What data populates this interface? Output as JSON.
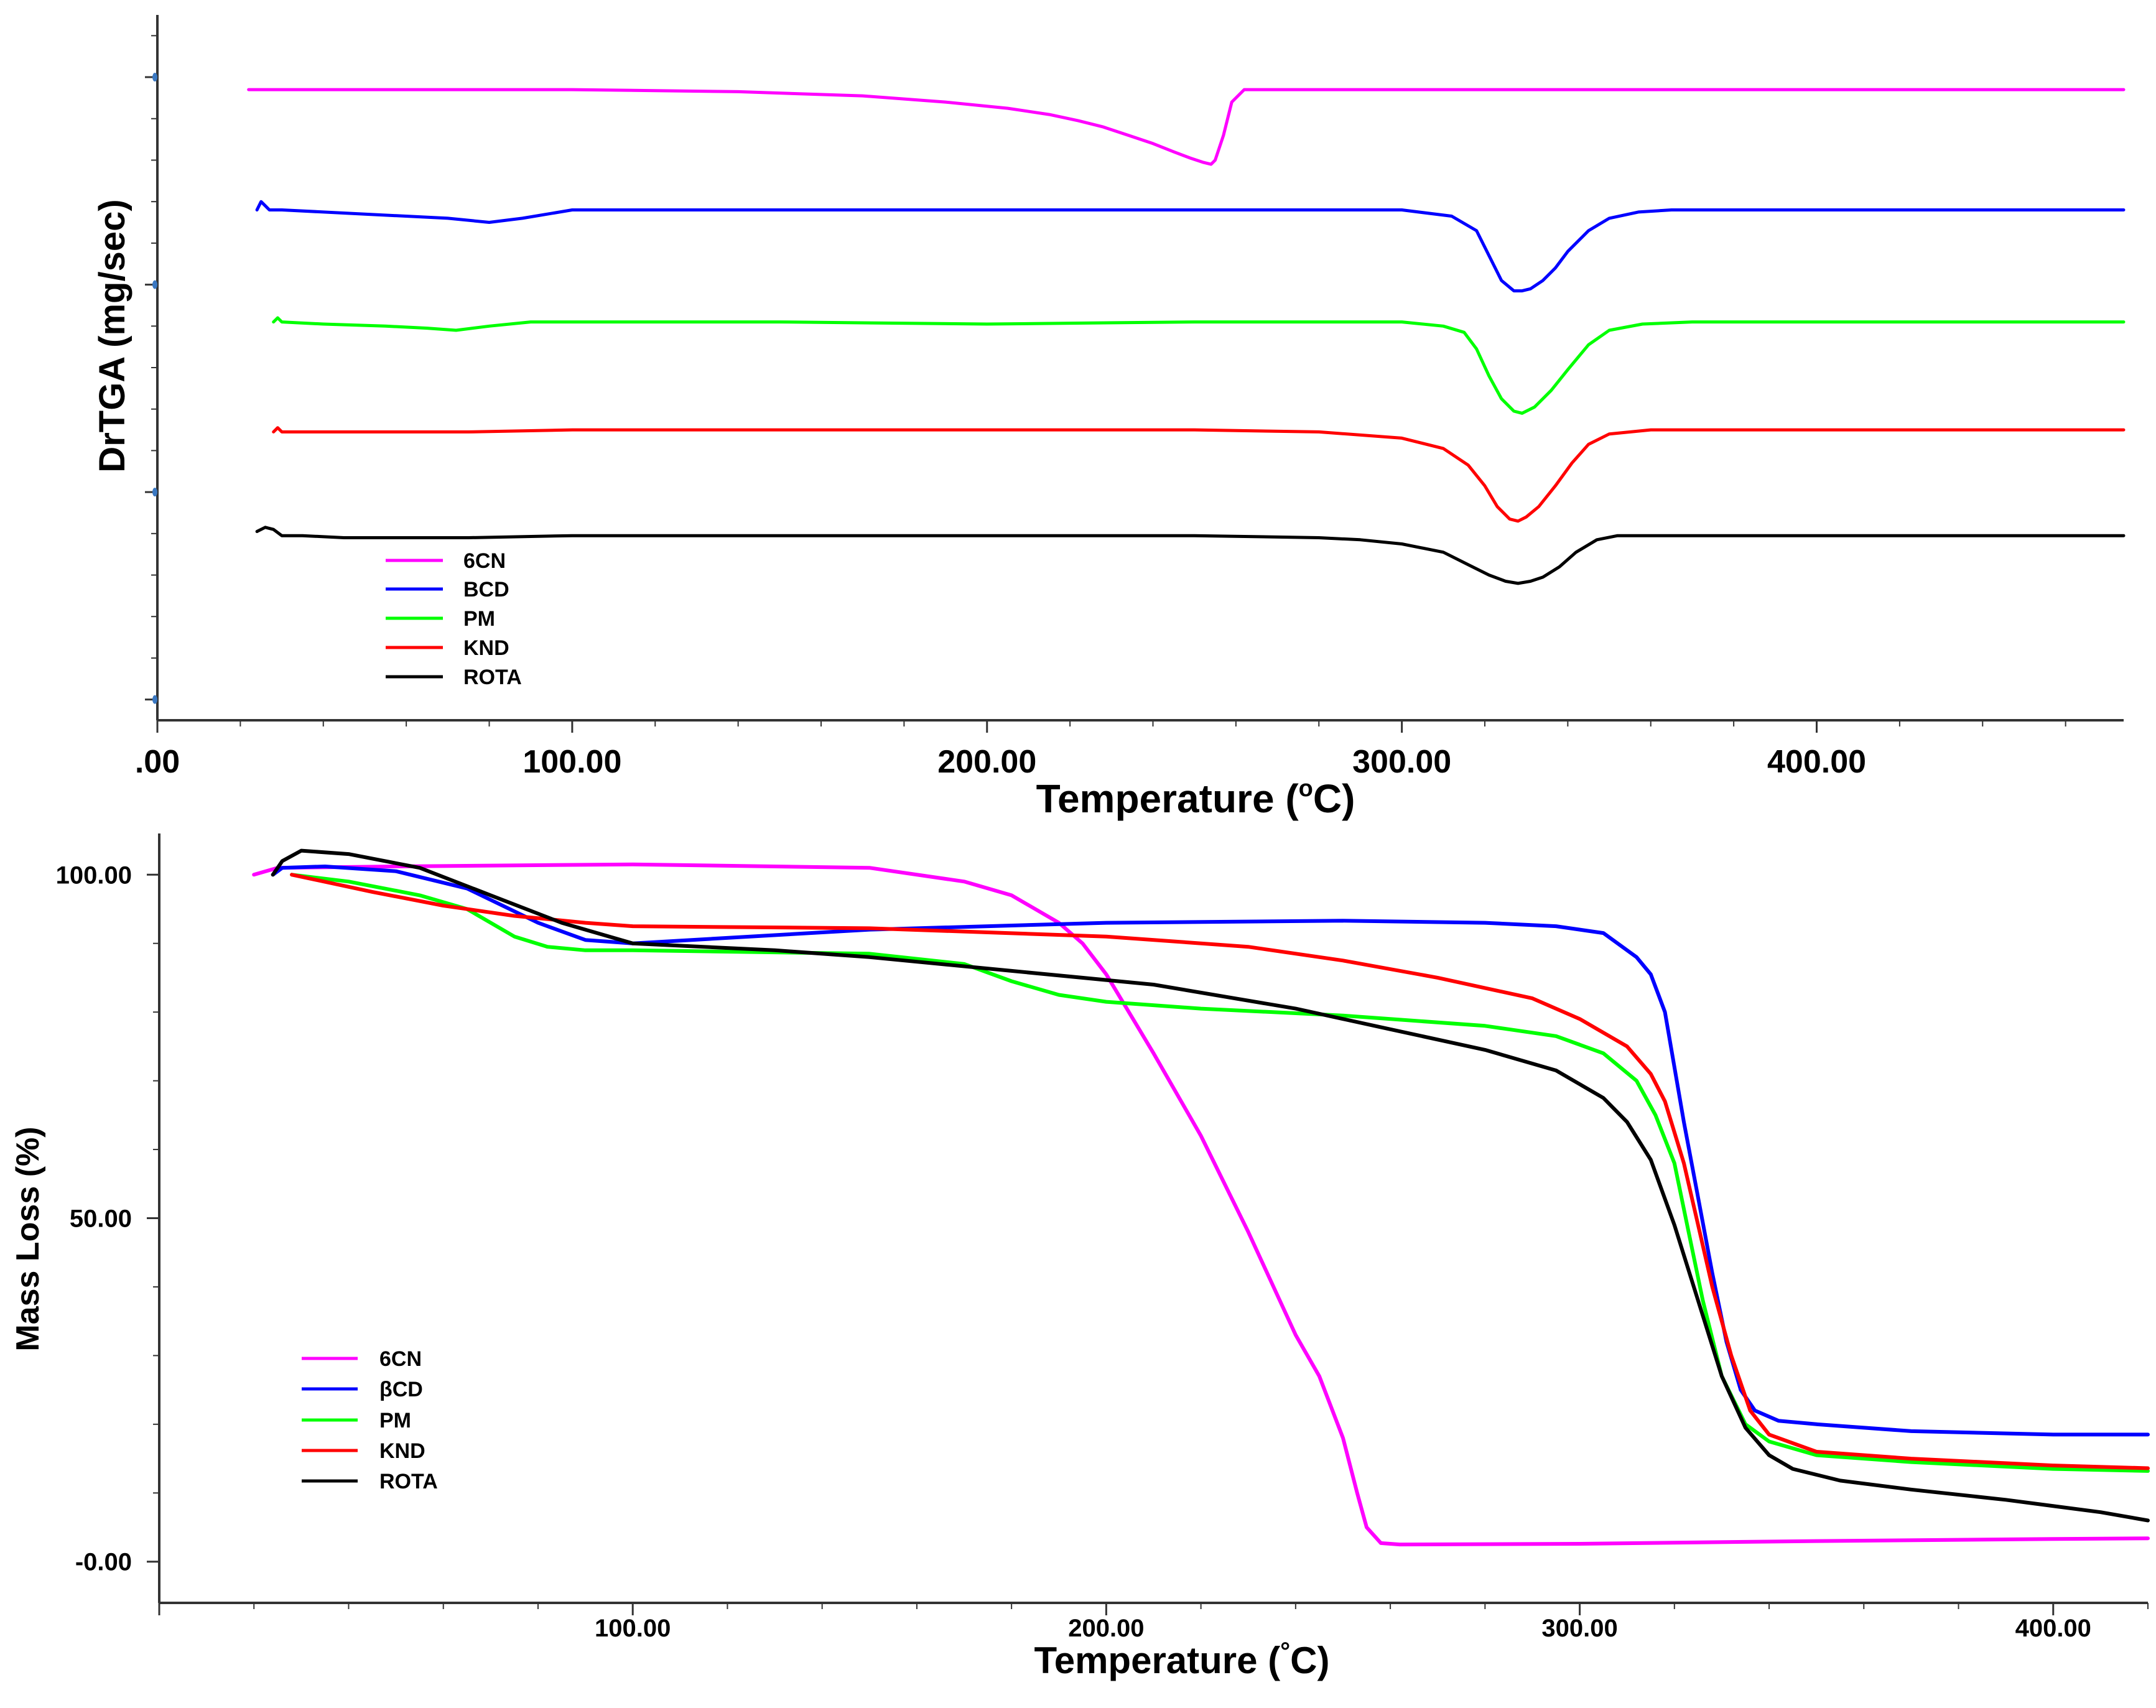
{
  "chart_data": [
    {
      "type": "line",
      "title": "",
      "xlabel": "Temperature (",
      "xlabel_sup": "o",
      "xlabel_tail": "C)",
      "ylabel": "DrTGA (mg/sec)",
      "xlim": [
        0,
        474
      ],
      "ylim": [
        -0.155,
        0.015
      ],
      "xticks": [
        0,
        100,
        200,
        300,
        400
      ],
      "xtick_labels": [
        ".00",
        "100.00",
        "200.00",
        "300.00",
        "400.00"
      ],
      "yticks": [
        0,
        -0.05,
        -0.1,
        -0.15
      ],
      "ytick_labels": [
        "",
        "",
        "",
        ""
      ],
      "legend_position": "lower-left",
      "series": [
        {
          "name": "6CN",
          "color": "#ff00ff",
          "x": [
            22,
            60,
            100,
            140,
            170,
            190,
            205,
            215,
            222,
            228,
            234,
            240,
            245,
            249,
            252,
            254,
            255,
            257,
            259,
            262,
            270,
            300,
            350,
            400,
            474
          ],
          "y": [
            -0.003,
            -0.003,
            -0.003,
            -0.0035,
            -0.0045,
            -0.006,
            -0.0075,
            -0.009,
            -0.0105,
            -0.012,
            -0.014,
            -0.016,
            -0.018,
            -0.0195,
            -0.0205,
            -0.021,
            -0.02,
            -0.014,
            -0.006,
            -0.003,
            -0.003,
            -0.003,
            -0.003,
            -0.003,
            -0.003
          ]
        },
        {
          "name": "BCD",
          "color": "#0000ff",
          "x": [
            24,
            25,
            26,
            27,
            30,
            50,
            70,
            80,
            88,
            100,
            150,
            200,
            250,
            300,
            312,
            318,
            321,
            324,
            327,
            329,
            331,
            334,
            337,
            340,
            345,
            350,
            357,
            365,
            400,
            474
          ],
          "y": [
            -0.032,
            -0.03,
            -0.031,
            -0.032,
            -0.032,
            -0.033,
            -0.034,
            -0.035,
            -0.034,
            -0.032,
            -0.032,
            -0.032,
            -0.032,
            -0.032,
            -0.0335,
            -0.037,
            -0.043,
            -0.049,
            -0.0515,
            -0.0515,
            -0.051,
            -0.049,
            -0.046,
            -0.042,
            -0.037,
            -0.034,
            -0.0325,
            -0.032,
            -0.032,
            -0.032
          ]
        },
        {
          "name": "PM",
          "color": "#00ff00",
          "x": [
            28,
            29,
            30,
            40,
            55,
            65,
            72,
            80,
            90,
            100,
            150,
            200,
            250,
            300,
            310,
            315,
            318,
            321,
            324,
            327,
            329,
            332,
            336,
            340,
            345,
            350,
            358,
            370,
            400,
            474
          ],
          "y": [
            -0.059,
            -0.058,
            -0.059,
            -0.0595,
            -0.06,
            -0.0605,
            -0.061,
            -0.06,
            -0.059,
            -0.059,
            -0.059,
            -0.0595,
            -0.059,
            -0.059,
            -0.06,
            -0.0615,
            -0.0655,
            -0.072,
            -0.0775,
            -0.0805,
            -0.081,
            -0.0795,
            -0.0755,
            -0.0705,
            -0.0645,
            -0.061,
            -0.0595,
            -0.059,
            -0.059,
            -0.059
          ]
        },
        {
          "name": "KND",
          "color": "#ff0000",
          "x": [
            28,
            29,
            30,
            50,
            75,
            100,
            150,
            200,
            250,
            280,
            300,
            310,
            316,
            320,
            323,
            326,
            328,
            330,
            333,
            337,
            341,
            345,
            350,
            360,
            400,
            474
          ],
          "y": [
            -0.0855,
            -0.0845,
            -0.0855,
            -0.0855,
            -0.0855,
            -0.085,
            -0.085,
            -0.085,
            -0.085,
            -0.0855,
            -0.087,
            -0.0895,
            -0.0935,
            -0.0985,
            -0.1035,
            -0.1065,
            -0.107,
            -0.106,
            -0.1035,
            -0.0985,
            -0.093,
            -0.0885,
            -0.086,
            -0.085,
            -0.085,
            -0.085
          ]
        },
        {
          "name": "ROTA",
          "color": "#000000",
          "x": [
            24,
            26,
            28,
            30,
            35,
            45,
            75,
            100,
            150,
            200,
            250,
            280,
            290,
            300,
            310,
            316,
            321,
            325,
            328,
            331,
            334,
            338,
            342,
            347,
            352,
            360,
            400,
            474
          ],
          "y": [
            -0.1095,
            -0.1085,
            -0.109,
            -0.1105,
            -0.1105,
            -0.111,
            -0.111,
            -0.1105,
            -0.1105,
            -0.1105,
            -0.1105,
            -0.111,
            -0.1115,
            -0.1125,
            -0.1145,
            -0.1175,
            -0.12,
            -0.1215,
            -0.122,
            -0.1215,
            -0.1205,
            -0.118,
            -0.1145,
            -0.1115,
            -0.1105,
            -0.1105,
            -0.1105,
            -0.1105
          ]
        }
      ]
    },
    {
      "type": "line",
      "title": "",
      "xlabel": "Temperature (",
      "xlabel_sup": "°",
      "xlabel_tail": "C)",
      "ylabel": "Mass Loss (%)",
      "xlim": [
        0,
        420
      ],
      "ylim": [
        -6,
        106
      ],
      "xticks": [
        100,
        200,
        300,
        400
      ],
      "xtick_labels": [
        "100.00",
        "200.00",
        "300.00",
        "400.00"
      ],
      "yticks": [
        100,
        50,
        0
      ],
      "ytick_labels": [
        "100.00",
        "50.00",
        "-0.00"
      ],
      "legend_position": "lower-left",
      "series": [
        {
          "name": "6CN",
          "color": "#ff00ff",
          "x": [
            20,
            25,
            50,
            100,
            150,
            170,
            180,
            190,
            195,
            200,
            210,
            220,
            230,
            240,
            245,
            250,
            253,
            255,
            258,
            262,
            300,
            350,
            400,
            420
          ],
          "y": [
            100,
            101,
            101.2,
            101.5,
            101,
            99,
            97,
            93,
            90,
            85.5,
            74,
            62,
            48,
            33,
            27,
            18,
            10,
            5,
            2.7,
            2.5,
            2.6,
            3,
            3.3,
            3.4
          ]
        },
        {
          "name": "βCD",
          "color": "#0000ff",
          "x": [
            24,
            26,
            35,
            50,
            65,
            80,
            90,
            100,
            150,
            200,
            250,
            280,
            295,
            305,
            312,
            315,
            318,
            320,
            322,
            325,
            328,
            331,
            334,
            337,
            342,
            350,
            370,
            400,
            420
          ],
          "y": [
            100,
            101,
            101.2,
            100.5,
            98,
            93,
            90.5,
            90,
            92,
            93,
            93.3,
            93,
            92.5,
            91.5,
            88,
            85.5,
            80,
            72,
            64,
            53,
            42,
            32,
            25,
            22,
            20.5,
            20,
            19,
            18.5,
            18.5
          ]
        },
        {
          "name": "PM",
          "color": "#00ff00",
          "x": [
            28,
            40,
            55,
            65,
            75,
            82,
            90,
            100,
            150,
            170,
            180,
            190,
            200,
            220,
            250,
            280,
            295,
            305,
            312,
            316,
            320,
            323,
            326,
            330,
            335,
            340,
            350,
            370,
            400,
            420
          ],
          "y": [
            100,
            99,
            97,
            95,
            91,
            89.5,
            89,
            89,
            88.5,
            87,
            84.5,
            82.5,
            81.5,
            80.5,
            79.5,
            78,
            76.5,
            74,
            70,
            65,
            58,
            48,
            38,
            27,
            20,
            17.5,
            15.5,
            14.5,
            13.5,
            13.2
          ]
        },
        {
          "name": "KND",
          "color": "#ff0000",
          "x": [
            28,
            45,
            60,
            75,
            90,
            100,
            150,
            200,
            230,
            250,
            270,
            290,
            300,
            310,
            315,
            318,
            322,
            325,
            328,
            332,
            336,
            340,
            350,
            370,
            400,
            420
          ],
          "y": [
            100,
            97.5,
            95.5,
            94,
            93,
            92.5,
            92.2,
            91,
            89.5,
            87.5,
            85,
            82,
            79,
            75,
            71,
            67,
            58,
            49,
            40,
            30,
            22,
            18.5,
            16,
            15,
            14,
            13.6
          ]
        },
        {
          "name": "ROTA",
          "color": "#000000",
          "x": [
            24,
            26,
            30,
            40,
            55,
            70,
            85,
            100,
            130,
            150,
            180,
            210,
            240,
            260,
            280,
            295,
            305,
            310,
            315,
            320,
            325,
            330,
            335,
            340,
            345,
            355,
            370,
            390,
            410,
            420
          ],
          "y": [
            100,
            102,
            103.5,
            103,
            101,
            97,
            93,
            90,
            89,
            88,
            86,
            84,
            80.5,
            77.5,
            74.5,
            71.5,
            67.5,
            64,
            58.5,
            49,
            38,
            27,
            19.5,
            15.5,
            13.5,
            11.8,
            10.5,
            9,
            7.2,
            6
          ]
        }
      ]
    }
  ]
}
